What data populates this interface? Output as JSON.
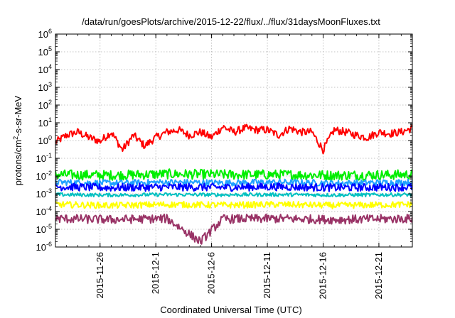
{
  "chart_data": {
    "type": "line",
    "title": "/data/run/goesPlots/archive/2015-12-22/flux/../flux/31daysMoonFluxes.txt",
    "xlabel": "Coordinated Universal Time (UTC)",
    "ylabel": "protons/cm²-s-sr-MeV",
    "ylabel_parts": {
      "base": "protons/cm",
      "sup": "2",
      "rest": "-s-sr-MeV"
    },
    "yscale": "log",
    "ylim": [
      1e-06,
      1000000.0
    ],
    "xlim": [
      "2015-11-22",
      "2015-12-24"
    ],
    "grid": true,
    "legend": "none",
    "y_ticks": [
      {
        "value": -6,
        "base": "10",
        "exp": "-6"
      },
      {
        "value": -5,
        "base": "10",
        "exp": "-5"
      },
      {
        "value": -4,
        "base": "10",
        "exp": "-4"
      },
      {
        "value": -3,
        "base": "10",
        "exp": "-3"
      },
      {
        "value": -2,
        "base": "10",
        "exp": "-2"
      },
      {
        "value": -1,
        "base": "10",
        "exp": "-1"
      },
      {
        "value": 0,
        "base": "10",
        "exp": "0"
      },
      {
        "value": 1,
        "base": "10",
        "exp": "1"
      },
      {
        "value": 2,
        "base": "10",
        "exp": "2"
      },
      {
        "value": 3,
        "base": "10",
        "exp": "3"
      },
      {
        "value": 4,
        "base": "10",
        "exp": "4"
      },
      {
        "value": 5,
        "base": "10",
        "exp": "5"
      },
      {
        "value": 6,
        "base": "10",
        "exp": "6"
      }
    ],
    "x_ticks": [
      "2015-11-26",
      "2015-12-1",
      "2015-12-6",
      "2015-12-11",
      "2015-12-16",
      "2015-12-21"
    ],
    "series": [
      {
        "color": "#ff0000",
        "x": [
          "2015-11-22",
          "2015-11-23",
          "2015-11-24",
          "2015-11-25",
          "2015-11-26",
          "2015-11-27",
          "2015-11-28",
          "2015-11-29",
          "2015-11-30",
          "2015-12-01",
          "2015-12-02",
          "2015-12-03",
          "2015-12-04",
          "2015-12-05",
          "2015-12-06",
          "2015-12-07",
          "2015-12-08",
          "2015-12-09",
          "2015-12-10",
          "2015-12-11",
          "2015-12-12",
          "2015-12-13",
          "2015-12-14",
          "2015-12-15",
          "2015-12-16",
          "2015-12-17",
          "2015-12-18",
          "2015-12-19",
          "2015-12-20",
          "2015-12-21",
          "2015-12-22",
          "2015-12-23",
          "2015-12-24"
        ],
        "values": [
          0.8,
          2,
          3,
          1.5,
          0.9,
          3,
          0.3,
          2,
          0.5,
          1.5,
          3,
          4,
          2,
          3,
          1.5,
          6,
          3,
          5,
          4,
          4,
          2,
          5,
          3,
          3,
          0.3,
          4,
          3,
          2,
          1.5,
          3,
          2.5,
          3,
          5
        ],
        "noise": 0.22
      },
      {
        "color": "#00ee00",
        "x": [
          "2015-11-22",
          "2015-11-27",
          "2015-12-02",
          "2015-12-07",
          "2015-12-12",
          "2015-12-17",
          "2015-12-24"
        ],
        "values": [
          0.012,
          0.011,
          0.013,
          0.012,
          0.012,
          0.011,
          0.012
        ],
        "noise": 0.28
      },
      {
        "color": "#1fa0ff",
        "x": [
          "2015-11-22",
          "2015-11-27",
          "2015-12-02",
          "2015-12-07",
          "2015-12-12",
          "2015-12-17",
          "2015-12-24"
        ],
        "values": [
          0.0045,
          0.004,
          0.0045,
          0.0042,
          0.0045,
          0.004,
          0.0045
        ],
        "noise": 0.18
      },
      {
        "color": "#0000ff",
        "x": [
          "2015-11-22",
          "2015-11-27",
          "2015-12-02",
          "2015-12-07",
          "2015-12-12",
          "2015-12-17",
          "2015-12-24"
        ],
        "values": [
          0.0025,
          0.0022,
          0.0024,
          0.0023,
          0.0025,
          0.0022,
          0.0024
        ],
        "noise": 0.22
      },
      {
        "color": "#00c0c0",
        "x": [
          "2015-11-22",
          "2015-11-27",
          "2015-12-02",
          "2015-12-07",
          "2015-12-12",
          "2015-12-17",
          "2015-12-24"
        ],
        "values": [
          0.0009,
          0.00085,
          0.0009,
          0.00088,
          0.0009,
          0.00085,
          0.0009
        ],
        "noise": 0.1
      },
      {
        "color": "#ffff00",
        "x": [
          "2015-11-22",
          "2015-11-27",
          "2015-12-02",
          "2015-12-07",
          "2015-12-12",
          "2015-12-17",
          "2015-12-24"
        ],
        "values": [
          0.00025,
          0.00022,
          0.00025,
          0.00023,
          0.00025,
          0.00022,
          0.00025
        ],
        "noise": 0.18
      },
      {
        "color": "#993366",
        "x": [
          "2015-11-22",
          "2015-11-27",
          "2015-12-02",
          "2015-12-05",
          "2015-12-07",
          "2015-12-12",
          "2015-12-17",
          "2015-12-24"
        ],
        "values": [
          4e-05,
          3.5e-05,
          4e-05,
          2e-06,
          3.8e-05,
          4e-05,
          3.5e-05,
          4e-05
        ],
        "noise": 0.25
      }
    ]
  }
}
